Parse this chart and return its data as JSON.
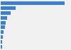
{
  "values": [
    550,
    130,
    85,
    55,
    42,
    35,
    27,
    20,
    15,
    10
  ],
  "bar_color": "#3a7fd5",
  "background_color": "#f0f0f0",
  "grid_color": "#ffffff",
  "xlim": [
    0,
    600
  ]
}
